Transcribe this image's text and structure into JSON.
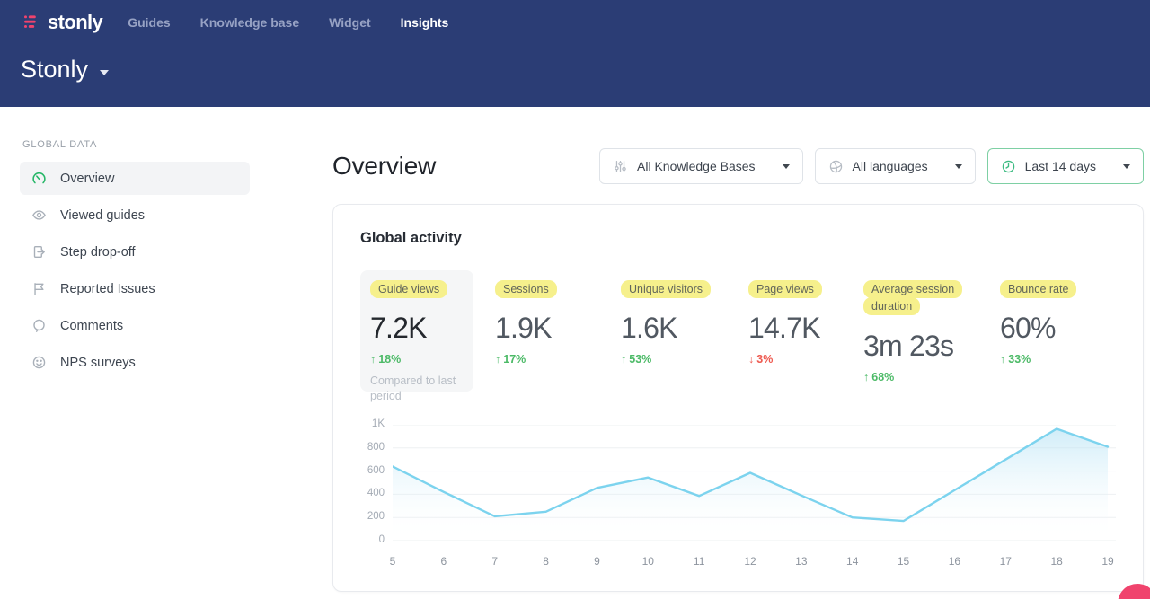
{
  "colors": {
    "header_bg": "#2b3d75",
    "brand_pink": "#f0436d",
    "accent_green": "#4cba67",
    "accent_red": "#ee5a50",
    "highlight_yellow": "#f6f08c",
    "chart_line": "#7cd3ee",
    "active_filter_border": "#7ed0a4"
  },
  "header": {
    "logo_text": "stonly",
    "nav": [
      {
        "label": "Guides",
        "active": false
      },
      {
        "label": "Knowledge base",
        "active": false
      },
      {
        "label": "Widget",
        "active": false
      },
      {
        "label": "Insights",
        "active": true
      }
    ],
    "workspace_name": "Stonly"
  },
  "sidebar": {
    "section_label": "GLOBAL DATA",
    "items": [
      {
        "label": "Overview",
        "icon": "gauge-icon",
        "active": true
      },
      {
        "label": "Viewed guides",
        "icon": "eye-icon",
        "active": false
      },
      {
        "label": "Step drop-off",
        "icon": "step-exit-icon",
        "active": false
      },
      {
        "label": "Reported Issues",
        "icon": "flag-icon",
        "active": false
      },
      {
        "label": "Comments",
        "icon": "comment-icon",
        "active": false
      },
      {
        "label": "NPS surveys",
        "icon": "smiley-icon",
        "active": false
      }
    ]
  },
  "main": {
    "title": "Overview",
    "filters": [
      {
        "label": "All Knowledge Bases",
        "icon": "sliders-icon",
        "active": false
      },
      {
        "label": "All languages",
        "icon": "globe-icon",
        "active": false
      },
      {
        "label": "Last 14 days",
        "icon": "clock-icon",
        "active": true
      }
    ],
    "card": {
      "title": "Global activity",
      "metrics": [
        {
          "label": "Guide views",
          "value": "7.2K",
          "direction": "up",
          "change": "18%",
          "note": "Compared to last period",
          "selected": true
        },
        {
          "label": "Sessions",
          "value": "1.9K",
          "direction": "up",
          "change": "17%",
          "selected": false
        },
        {
          "label": "Unique visitors",
          "value": "1.6K",
          "direction": "up",
          "change": "53%",
          "selected": false
        },
        {
          "label": "Page views",
          "value": "14.7K",
          "direction": "down",
          "change": "3%",
          "selected": false
        },
        {
          "label": "Average session duration",
          "value": "3m 23s",
          "direction": "up",
          "change": "68%",
          "selected": false
        },
        {
          "label": "Bounce rate",
          "value": "60%",
          "direction": "up",
          "change": "33%",
          "selected": false
        }
      ]
    }
  },
  "chart_data": {
    "type": "area",
    "x": [
      5,
      6,
      7,
      8,
      9,
      10,
      11,
      12,
      13,
      14,
      15,
      16,
      17,
      18,
      19
    ],
    "series": [
      {
        "name": "Guide views",
        "values": [
          640,
          420,
          210,
          250,
          455,
          545,
          385,
          585,
          390,
          200,
          170,
          435,
          700,
          965,
          810
        ]
      }
    ],
    "ylim": [
      0,
      1000
    ],
    "ytick_values": [
      0,
      200,
      400,
      600,
      800,
      1000
    ],
    "ytick_labels": [
      "0",
      "200",
      "400",
      "600",
      "800",
      "1K"
    ],
    "grid": true,
    "legend": false,
    "xlabel": "",
    "ylabel": ""
  }
}
